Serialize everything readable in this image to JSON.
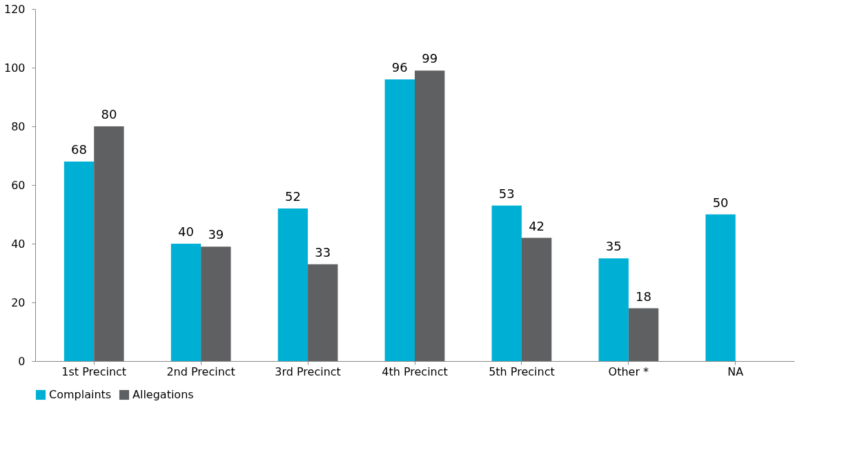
{
  "chart_data": {
    "type": "bar",
    "categories": [
      "1st Precinct",
      "2nd Precinct",
      "3rd Precinct",
      "4th Precinct",
      "5th Precinct",
      "Other *",
      "NA"
    ],
    "series": [
      {
        "name": "Complaints",
        "color": "#00b0d4",
        "values": [
          68,
          40,
          52,
          96,
          53,
          35,
          50
        ]
      },
      {
        "name": "Allegations",
        "color": "#5f6062",
        "values": [
          80,
          39,
          33,
          99,
          42,
          18,
          null
        ]
      }
    ],
    "ylim": [
      0,
      120
    ],
    "yticks": [
      0,
      20,
      40,
      60,
      80,
      100,
      120
    ],
    "grid": false,
    "legend": "bottom",
    "data_labels": true
  }
}
